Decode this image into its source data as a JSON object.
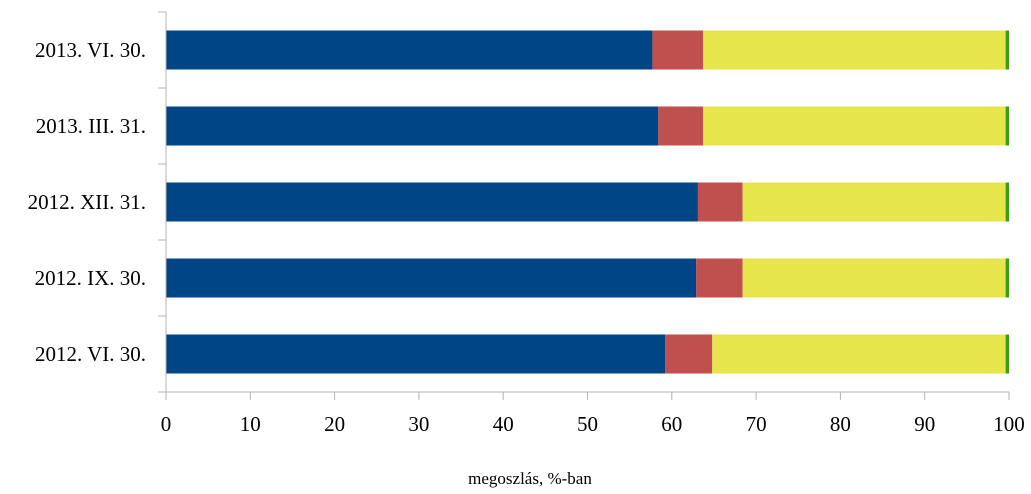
{
  "chart_data": {
    "type": "bar",
    "orientation": "horizontal",
    "stacked": true,
    "categories": [
      "2013. VI. 30.",
      "2013. III. 31.",
      "2012. XII. 31.",
      "2012. IX. 30.",
      "2012. VI. 30."
    ],
    "series": [
      {
        "color": "#004586",
        "values": [
          57.7,
          58.4,
          63.1,
          62.9,
          59.2
        ]
      },
      {
        "color": "#C0504D",
        "values": [
          6.0,
          5.3,
          5.3,
          5.5,
          5.6
        ]
      },
      {
        "color": "#E6E54C",
        "values": [
          35.9,
          35.9,
          31.2,
          31.2,
          34.8
        ]
      },
      {
        "color": "#3C9E14",
        "values": [
          0.4,
          0.4,
          0.4,
          0.4,
          0.4
        ]
      }
    ],
    "xlabel": "megoszlás, %-ban",
    "xlim": [
      0,
      100
    ],
    "xticks": [
      "0",
      "10",
      "20",
      "30",
      "40",
      "50",
      "60",
      "70",
      "80",
      "90",
      "100"
    ],
    "grid": false,
    "legend": "none"
  }
}
